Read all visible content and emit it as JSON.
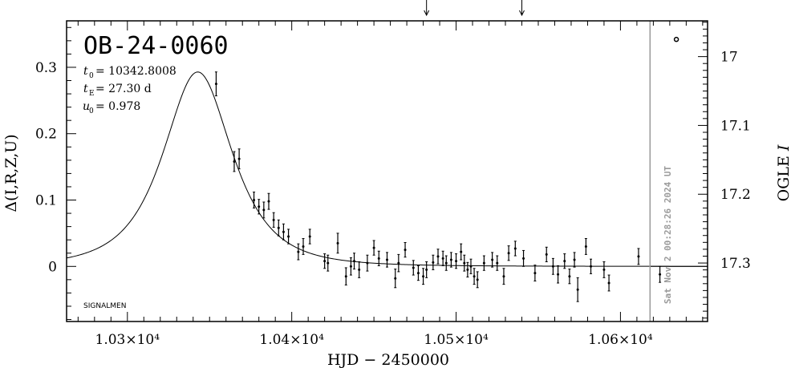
{
  "chart_data": {
    "type": "scatter",
    "title": "OB-24-0060",
    "params": [
      {
        "sym": "t",
        "sub": "0",
        "text": " = 10342.8008"
      },
      {
        "sym": "t",
        "sub": "E",
        "text": " = 27.30  d"
      },
      {
        "sym": "u",
        "sub": "0",
        "text": " = 0.978"
      }
    ],
    "xlabel": "HJD  −  2450000",
    "ylabel": "Δ(I,R,Z,U)",
    "y2label": "OGLE I",
    "xlim": [
      10263,
      10653
    ],
    "ylim": [
      -0.083,
      0.37
    ],
    "y2lim": [
      17.385,
      16.948
    ],
    "x_ticks": [
      {
        "value": 10300,
        "label": "1.03×10⁴"
      },
      {
        "value": 10400,
        "label": "1.04×10⁴"
      },
      {
        "value": 10500,
        "label": "1.05×10⁴"
      },
      {
        "value": 10600,
        "label": "1.06×10⁴"
      }
    ],
    "y_ticks": [
      {
        "value": 0,
        "label": "0"
      },
      {
        "value": 0.1,
        "label": "0.1"
      },
      {
        "value": 0.2,
        "label": "0.2"
      },
      {
        "value": 0.3,
        "label": "0.3"
      }
    ],
    "y2_ticks": [
      {
        "value": 17.0,
        "label": "17"
      },
      {
        "value": 17.1,
        "label": "17.1"
      },
      {
        "value": 17.2,
        "label": "17.2"
      },
      {
        "value": 17.3,
        "label": "17.3"
      }
    ],
    "model": {
      "t0": 10342.8008,
      "tE": 27.3,
      "u0": 0.978,
      "scale": 0.293
    },
    "series": [
      {
        "x": 10354,
        "y": 0.275,
        "err": 0.018
      },
      {
        "x": 10365,
        "y": 0.158,
        "err": 0.015
      },
      {
        "x": 10368,
        "y": 0.162,
        "err": 0.015
      },
      {
        "x": 10377,
        "y": 0.1,
        "err": 0.012
      },
      {
        "x": 10380,
        "y": 0.09,
        "err": 0.011
      },
      {
        "x": 10383,
        "y": 0.085,
        "err": 0.012
      },
      {
        "x": 10386,
        "y": 0.098,
        "err": 0.012
      },
      {
        "x": 10389,
        "y": 0.07,
        "err": 0.011
      },
      {
        "x": 10392,
        "y": 0.058,
        "err": 0.012
      },
      {
        "x": 10395,
        "y": 0.052,
        "err": 0.012
      },
      {
        "x": 10398,
        "y": 0.045,
        "err": 0.011
      },
      {
        "x": 10404,
        "y": 0.022,
        "err": 0.012
      },
      {
        "x": 10407,
        "y": 0.03,
        "err": 0.012
      },
      {
        "x": 10411,
        "y": 0.045,
        "err": 0.011
      },
      {
        "x": 10420,
        "y": 0.008,
        "err": 0.011
      },
      {
        "x": 10422,
        "y": 0.005,
        "err": 0.012
      },
      {
        "x": 10428,
        "y": 0.035,
        "err": 0.015
      },
      {
        "x": 10433,
        "y": -0.015,
        "err": 0.013
      },
      {
        "x": 10436,
        "y": 0.0,
        "err": 0.013
      },
      {
        "x": 10438,
        "y": 0.008,
        "err": 0.012
      },
      {
        "x": 10441,
        "y": -0.005,
        "err": 0.012
      },
      {
        "x": 10446,
        "y": 0.005,
        "err": 0.012
      },
      {
        "x": 10450,
        "y": 0.028,
        "err": 0.011
      },
      {
        "x": 10453,
        "y": 0.012,
        "err": 0.011
      },
      {
        "x": 10458,
        "y": 0.01,
        "err": 0.011
      },
      {
        "x": 10463,
        "y": -0.018,
        "err": 0.014
      },
      {
        "x": 10465,
        "y": 0.005,
        "err": 0.013
      },
      {
        "x": 10469,
        "y": 0.025,
        "err": 0.011
      },
      {
        "x": 10474,
        "y": -0.002,
        "err": 0.011
      },
      {
        "x": 10477,
        "y": -0.01,
        "err": 0.011
      },
      {
        "x": 10480,
        "y": -0.015,
        "err": 0.012
      },
      {
        "x": 10482,
        "y": -0.005,
        "err": 0.012
      },
      {
        "x": 10486,
        "y": 0.006,
        "err": 0.011
      },
      {
        "x": 10489,
        "y": 0.015,
        "err": 0.011
      },
      {
        "x": 10492,
        "y": 0.012,
        "err": 0.011
      },
      {
        "x": 10494,
        "y": 0.005,
        "err": 0.011
      },
      {
        "x": 10497,
        "y": 0.01,
        "err": 0.011
      },
      {
        "x": 10500,
        "y": 0.008,
        "err": 0.011
      },
      {
        "x": 10503,
        "y": 0.022,
        "err": 0.012
      },
      {
        "x": 10505,
        "y": 0.005,
        "err": 0.012
      },
      {
        "x": 10507,
        "y": -0.005,
        "err": 0.011
      },
      {
        "x": 10509,
        "y": 0.0,
        "err": 0.011
      },
      {
        "x": 10511,
        "y": -0.015,
        "err": 0.012
      },
      {
        "x": 10513,
        "y": -0.02,
        "err": 0.012
      },
      {
        "x": 10517,
        "y": 0.005,
        "err": 0.011
      },
      {
        "x": 10522,
        "y": 0.01,
        "err": 0.011
      },
      {
        "x": 10525,
        "y": 0.005,
        "err": 0.011
      },
      {
        "x": 10529,
        "y": -0.015,
        "err": 0.012
      },
      {
        "x": 10532,
        "y": 0.02,
        "err": 0.011
      },
      {
        "x": 10536,
        "y": 0.027,
        "err": 0.011
      },
      {
        "x": 10541,
        "y": 0.012,
        "err": 0.012
      },
      {
        "x": 10548,
        "y": -0.01,
        "err": 0.012
      },
      {
        "x": 10555,
        "y": 0.018,
        "err": 0.011
      },
      {
        "x": 10559,
        "y": 0.0,
        "err": 0.012
      },
      {
        "x": 10562,
        "y": -0.012,
        "err": 0.013
      },
      {
        "x": 10566,
        "y": 0.008,
        "err": 0.011
      },
      {
        "x": 10569,
        "y": -0.015,
        "err": 0.011
      },
      {
        "x": 10572,
        "y": 0.01,
        "err": 0.011
      },
      {
        "x": 10574,
        "y": -0.035,
        "err": 0.018
      },
      {
        "x": 10579,
        "y": 0.03,
        "err": 0.012
      },
      {
        "x": 10582,
        "y": 0.0,
        "err": 0.011
      },
      {
        "x": 10590,
        "y": -0.005,
        "err": 0.012
      },
      {
        "x": 10593,
        "y": -0.025,
        "err": 0.012
      },
      {
        "x": 10611,
        "y": 0.015,
        "err": 0.012
      },
      {
        "x": 10624,
        "y": -0.012,
        "err": 0.012
      }
    ],
    "extra_point": {
      "x": 10634,
      "y": 0.342
    },
    "today_line_x": 10618,
    "arrows_x": [
      10482,
      10540
    ],
    "timestamp": "Sat Nov  2 00:28:26 2024 UT",
    "watermark": "SIGNALMEN",
    "grid": false,
    "legend": "none"
  }
}
